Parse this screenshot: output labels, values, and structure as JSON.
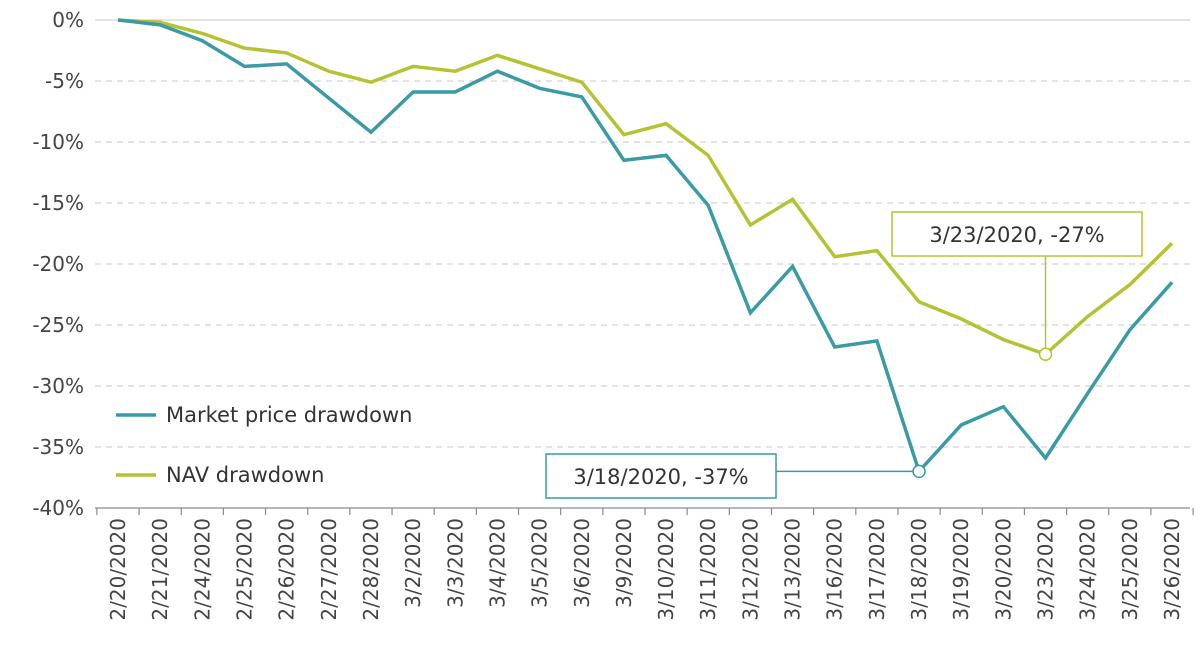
{
  "chart_data": {
    "type": "line",
    "categories": [
      "2/20/2020",
      "2/21/2020",
      "2/24/2020",
      "2/25/2020",
      "2/26/2020",
      "2/27/2020",
      "2/28/2020",
      "3/2/2020",
      "3/3/2020",
      "3/4/2020",
      "3/5/2020",
      "3/6/2020",
      "3/9/2020",
      "3/10/2020",
      "3/11/2020",
      "3/12/2020",
      "3/13/2020",
      "3/16/2020",
      "3/17/2020",
      "3/18/2020",
      "3/19/2020",
      "3/20/2020",
      "3/23/2020",
      "3/24/2020",
      "3/25/2020",
      "3/26/2020"
    ],
    "series": [
      {
        "name": "Market price drawdown",
        "color": "#3a9aa5",
        "values": [
          0,
          -0.4,
          -1.7,
          -3.8,
          -3.6,
          -6.4,
          -9.2,
          -5.9,
          -5.9,
          -4.2,
          -5.6,
          -6.3,
          -11.5,
          -11.1,
          -15.2,
          -24.0,
          -20.2,
          -26.8,
          -26.3,
          -37.0,
          -33.2,
          -31.7,
          -35.9,
          -30.6,
          -25.4,
          -21.5
        ]
      },
      {
        "name": "NAV drawdown",
        "color": "#b5c234",
        "values": [
          0,
          -0.2,
          -1.1,
          -2.3,
          -2.7,
          -4.2,
          -5.1,
          -3.8,
          -4.2,
          -2.9,
          -4.0,
          -5.1,
          -9.4,
          -8.5,
          -11.1,
          -16.8,
          -14.7,
          -19.4,
          -18.9,
          -23.1,
          -24.5,
          -26.2,
          -27.4,
          -24.3,
          -21.7,
          -18.3
        ]
      }
    ],
    "y_ticks": [
      "0%",
      "-5%",
      "-10%",
      "-15%",
      "-20%",
      "-25%",
      "-30%",
      "-35%",
      "-40%"
    ],
    "y_tick_values": [
      0,
      -5,
      -10,
      -15,
      -20,
      -25,
      -30,
      -35,
      -40
    ],
    "ylim": [
      -40,
      0
    ],
    "grid": "horizontal dashed",
    "legend_position": "bottom-left",
    "annotations": [
      {
        "text": "3/18/2020, -37%",
        "series": 0,
        "index": 19,
        "color": "#3a9aa5"
      },
      {
        "text": "3/23/2020, -27%",
        "series": 1,
        "index": 22,
        "color": "#b5c234"
      }
    ]
  }
}
